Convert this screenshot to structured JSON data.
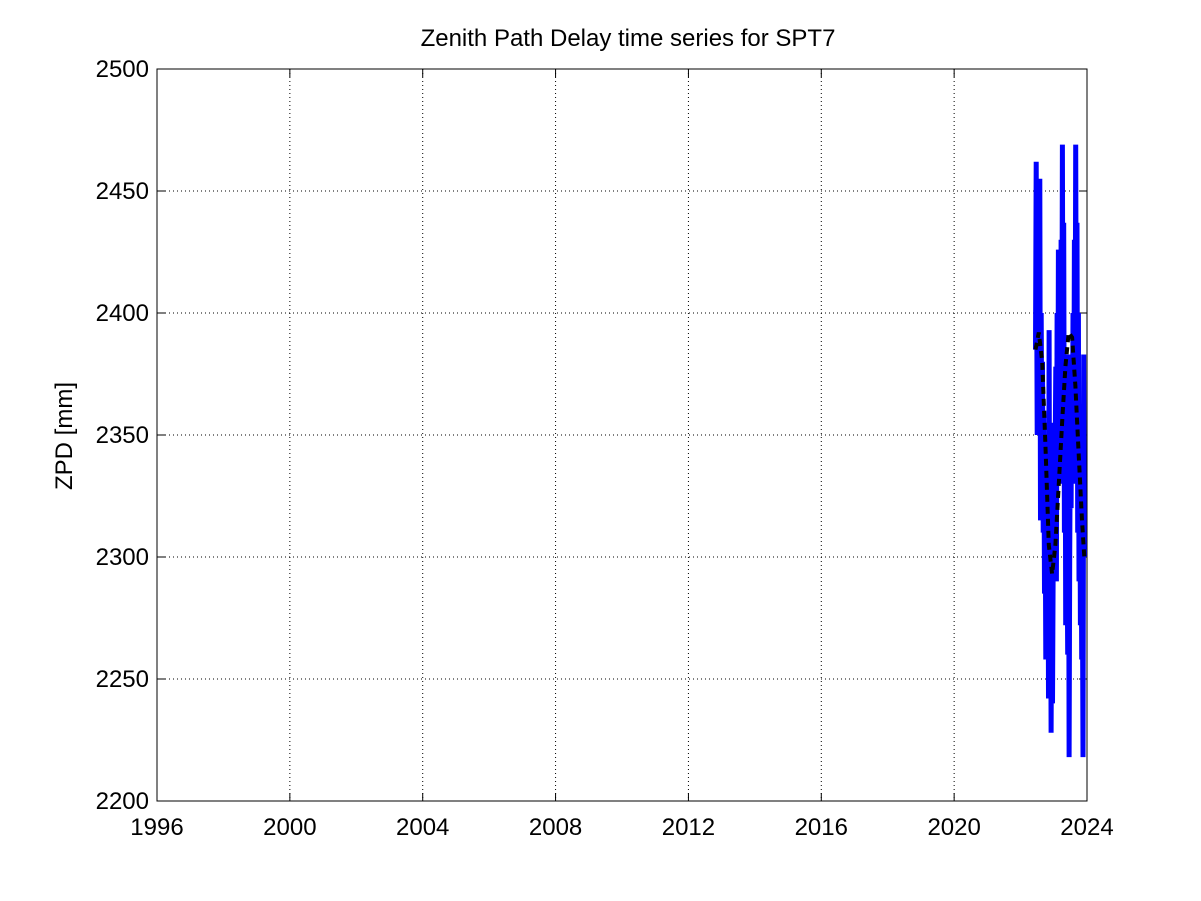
{
  "chart_data": {
    "type": "line",
    "title": "Zenith Path Delay time series for SPT7",
    "xlabel": "",
    "ylabel": "ZPD [mm]",
    "xlim": [
      1996,
      2024
    ],
    "ylim": [
      2200,
      2500
    ],
    "x_ticks": [
      "1996",
      "2000",
      "2004",
      "2008",
      "2012",
      "2016",
      "2020",
      "2024"
    ],
    "y_ticks": [
      "2200",
      "2250",
      "2300",
      "2350",
      "2400",
      "2450",
      "2500"
    ],
    "grid": true,
    "colors": {
      "data": "#0000ff",
      "trend": "#000000"
    },
    "series": [
      {
        "style": "solid",
        "color": "#0000ff",
        "x": [
          2022.45,
          2022.47,
          2022.5,
          2022.52,
          2022.54,
          2022.56,
          2022.58,
          2022.6,
          2022.62,
          2022.64,
          2022.66,
          2022.68,
          2022.7,
          2022.72,
          2022.74,
          2022.76,
          2022.78,
          2022.8,
          2022.82,
          2022.84,
          2022.86,
          2022.88,
          2022.9,
          2022.92,
          2022.94,
          2022.96,
          2022.98,
          2023.0,
          2023.02,
          2023.04,
          2023.06,
          2023.08,
          2023.1,
          2023.12,
          2023.14,
          2023.16,
          2023.18,
          2023.2,
          2023.22,
          2023.24,
          2023.26,
          2023.28,
          2023.3,
          2023.32,
          2023.34,
          2023.36,
          2023.38,
          2023.4,
          2023.42,
          2023.44,
          2023.46,
          2023.48,
          2023.5,
          2023.52,
          2023.54,
          2023.56,
          2023.58,
          2023.6,
          2023.62,
          2023.64,
          2023.66,
          2023.68,
          2023.7,
          2023.72,
          2023.74,
          2023.76,
          2023.78,
          2023.8,
          2023.82,
          2023.84,
          2023.86,
          2023.88,
          2023.9,
          2023.92
        ],
        "y": [
          2385,
          2462,
          2350,
          2455,
          2390,
          2360,
          2455,
          2315,
          2400,
          2340,
          2380,
          2310,
          2360,
          2285,
          2320,
          2258,
          2300,
          2270,
          2350,
          2242,
          2393,
          2260,
          2310,
          2228,
          2300,
          2240,
          2290,
          2355,
          2300,
          2340,
          2378,
          2290,
          2400,
          2330,
          2426,
          2345,
          2390,
          2330,
          2430,
          2360,
          2469,
          2345,
          2437,
          2310,
          2380,
          2272,
          2355,
          2300,
          2260,
          2383,
          2218,
          2300,
          2355,
          2320,
          2383,
          2340,
          2400,
          2330,
          2430,
          2350,
          2469,
          2360,
          2437,
          2310,
          2400,
          2290,
          2360,
          2272,
          2340,
          2258,
          2300,
          2218,
          2383,
          2300
        ]
      },
      {
        "style": "dashed",
        "color": "#000000",
        "x": [
          2022.45,
          2022.55,
          2022.65,
          2022.75,
          2022.85,
          2022.95,
          2023.05,
          2023.15,
          2023.25,
          2023.35,
          2023.45,
          2023.55,
          2023.65,
          2023.75,
          2023.85,
          2023.92
        ],
        "y": [
          2385,
          2392,
          2380,
          2345,
          2305,
          2293,
          2305,
          2330,
          2355,
          2378,
          2392,
          2390,
          2370,
          2342,
          2315,
          2300
        ]
      }
    ]
  }
}
